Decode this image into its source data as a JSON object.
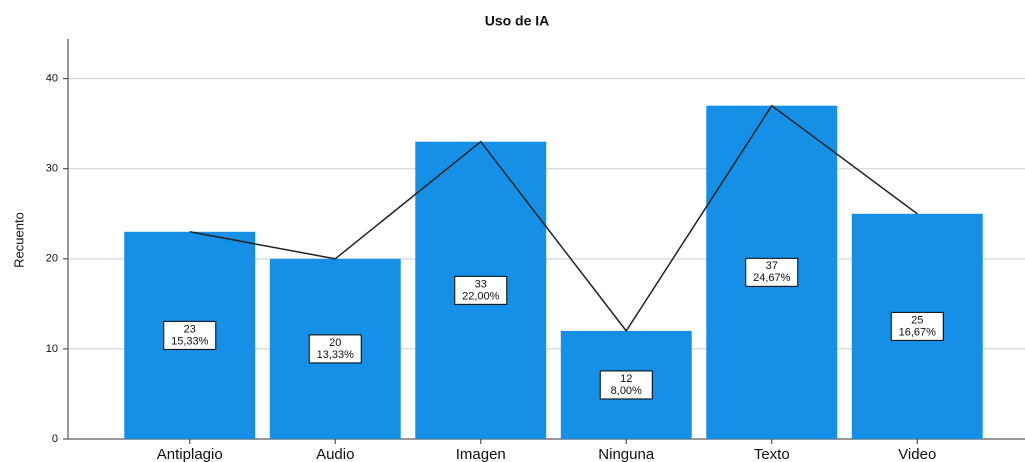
{
  "chart_data": {
    "type": "bar",
    "title": "Uso de IA",
    "y_label": "Recuento",
    "categories": [
      "Antiplagio",
      "Audio",
      "Imagen",
      "Ninguna",
      "Texto",
      "Video"
    ],
    "values": [
      23,
      20,
      33,
      12,
      37,
      25
    ],
    "percent_labels": [
      "15,33%",
      "13,33%",
      "22,00%",
      "8,00%",
      "24,67%",
      "16,67%"
    ],
    "color": "#1590e6",
    "line_color": "#222222",
    "ylim": [
      0,
      44.4
    ],
    "yticks": [
      0,
      10,
      20,
      30,
      40
    ],
    "grid": true
  }
}
